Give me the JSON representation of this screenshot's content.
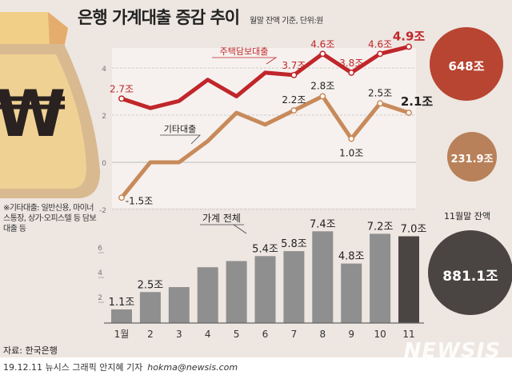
{
  "header": {
    "title": "은행 가계대출 증감 추이",
    "subtitle": "월말 잔액 기준, 단위:원"
  },
  "note": "※기타대출: 일반신용, 마이너스통장, 상가·오피스텔 등 담보대출 등",
  "source": "자료: 한국은행",
  "credit": {
    "text": "19.12.11 뉴시스 그래픽 안지혜 기자",
    "email": "hokma@newsis.com"
  },
  "watermark": "NEWSIS",
  "balances": {
    "caption": "11월말 잔액",
    "mortgage": "648조",
    "other": "231.9조",
    "total": "881.1조"
  },
  "colors": {
    "mortgage": "#c0262a",
    "other": "#c88a5a",
    "bar": "#8f8f8f",
    "bar_last": "#4a4542",
    "circle_mortgage": "#b84432",
    "circle_other": "#b98159",
    "circle_total": "#4a4542",
    "background": "#ede6e1"
  },
  "chart_data": [
    {
      "type": "line",
      "categories": [
        "1월",
        "2",
        "3",
        "4",
        "5",
        "6",
        "7",
        "8",
        "9",
        "10",
        "11"
      ],
      "yticks": [
        "4",
        "2",
        "0",
        "-2"
      ],
      "ytick_values": [
        4,
        2,
        0,
        -2
      ],
      "grid": true,
      "series": [
        {
          "name": "주택담보대출",
          "values": [
            2.7,
            2.3,
            2.6,
            3.5,
            2.8,
            3.8,
            3.7,
            4.6,
            3.8,
            4.6,
            4.9
          ],
          "labels": [
            "2.7조",
            "",
            "",
            "",
            "",
            "",
            "3.7조",
            "4.6조",
            "3.8조",
            "4.6조",
            "4.9조"
          ]
        },
        {
          "name": "기타대출",
          "values": [
            -1.5,
            0.0,
            0.0,
            0.9,
            2.1,
            1.6,
            2.2,
            2.8,
            1.0,
            2.5,
            2.1
          ],
          "labels": [
            "-1.5조",
            "",
            "",
            "",
            "",
            "",
            "2.2조",
            "2.8조",
            "1.0조",
            "2.5조",
            "2.1조"
          ]
        }
      ]
    },
    {
      "type": "bar",
      "categories": [
        "1월",
        "2",
        "3",
        "4",
        "5",
        "6",
        "7",
        "8",
        "9",
        "10",
        "11"
      ],
      "yticks": [
        "6",
        "4",
        "2"
      ],
      "ytick_values": [
        6,
        4,
        2
      ],
      "series": [
        {
          "name": "가계 전체",
          "values": [
            1.1,
            2.5,
            2.9,
            4.5,
            5.0,
            5.4,
            5.8,
            7.4,
            4.8,
            7.2,
            7.0
          ],
          "labels": [
            "1.1조",
            "2.5조",
            "",
            "",
            "",
            "5.4조",
            "5.8조",
            "7.4조",
            "4.8조",
            "7.2조",
            "7.0조"
          ]
        }
      ]
    }
  ]
}
